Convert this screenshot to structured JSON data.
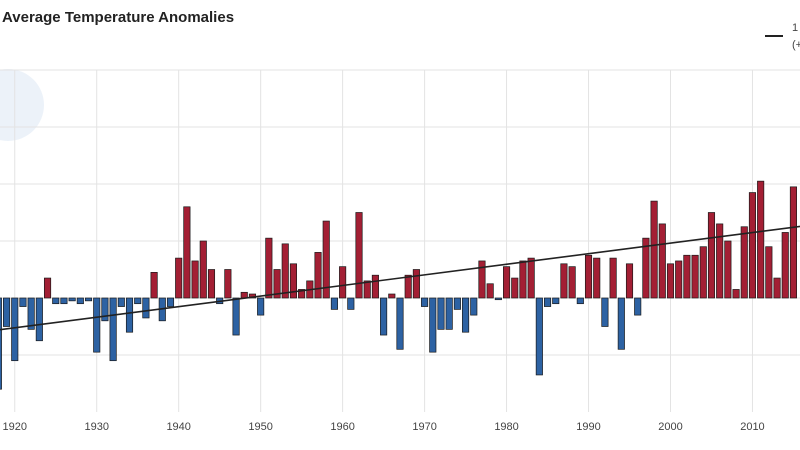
{
  "chart_data": {
    "type": "bar",
    "title": "Average Temperature Anomalies",
    "x": [
      1918,
      1919,
      1920,
      1921,
      1922,
      1923,
      1924,
      1925,
      1926,
      1927,
      1928,
      1929,
      1930,
      1931,
      1932,
      1933,
      1934,
      1935,
      1936,
      1937,
      1938,
      1939,
      1940,
      1941,
      1942,
      1943,
      1944,
      1945,
      1946,
      1947,
      1948,
      1949,
      1950,
      1951,
      1952,
      1953,
      1954,
      1955,
      1956,
      1957,
      1958,
      1959,
      1960,
      1961,
      1962,
      1963,
      1964,
      1965,
      1966,
      1967,
      1968,
      1969,
      1970,
      1971,
      1972,
      1973,
      1974,
      1975,
      1976,
      1977,
      1978,
      1979,
      1980,
      1981,
      1982,
      1983,
      1984,
      1985,
      1986,
      1987,
      1988,
      1989,
      1990,
      1991,
      1992,
      1993,
      1994,
      1995,
      1996,
      1997,
      1998,
      1999,
      2000,
      2001,
      2002,
      2003,
      2004,
      2005,
      2006,
      2007,
      2008,
      2009,
      2010,
      2011,
      2012,
      2013,
      2014,
      2015
    ],
    "values": [
      -1.6,
      -0.5,
      -1.1,
      -0.15,
      -0.55,
      -0.75,
      0.35,
      -0.1,
      -0.1,
      -0.05,
      -0.1,
      -0.05,
      -0.95,
      -0.4,
      -1.1,
      -0.15,
      -0.6,
      -0.1,
      -0.35,
      0.45,
      -0.4,
      -0.15,
      0.7,
      1.6,
      0.65,
      1.0,
      0.5,
      -0.1,
      0.5,
      -0.65,
      0.1,
      0.07,
      -0.3,
      1.05,
      0.5,
      0.95,
      0.6,
      0.15,
      0.3,
      0.8,
      1.35,
      -0.2,
      0.55,
      -0.2,
      1.5,
      0.3,
      0.4,
      -0.65,
      0.07,
      -0.9,
      0.4,
      0.5,
      -0.15,
      -0.95,
      -0.55,
      -0.55,
      -0.2,
      -0.6,
      -0.3,
      0.65,
      0.25,
      -0.03,
      0.55,
      0.35,
      0.65,
      0.7,
      -1.35,
      -0.15,
      -0.1,
      0.6,
      0.55,
      -0.1,
      0.75,
      0.7,
      -0.5,
      0.7,
      -0.9,
      0.6,
      -0.3,
      1.05,
      1.7,
      1.3,
      0.6,
      0.65,
      0.75,
      0.75,
      0.9,
      1.5,
      1.3,
      1.0,
      0.15,
      1.25,
      1.85,
      2.05,
      0.9,
      0.35,
      1.15,
      1.95
    ],
    "positive_color": "#a31f34",
    "negative_color": "#2d62a3",
    "trend": {
      "x": [
        1918,
        2016
      ],
      "values": [
        -0.56,
        1.26
      ],
      "color": "#222"
    },
    "legend_lines": [
      "1",
      "(+"
    ],
    "xlim": [
      1918.2,
      2015.8
    ],
    "xticks": [
      1920,
      1930,
      1940,
      1950,
      1960,
      1970,
      1980,
      1990,
      2000,
      2010
    ],
    "ylim": [
      -2,
      4
    ],
    "ygrid": [
      -1,
      0,
      1,
      2,
      3,
      4
    ],
    "grid": true
  }
}
